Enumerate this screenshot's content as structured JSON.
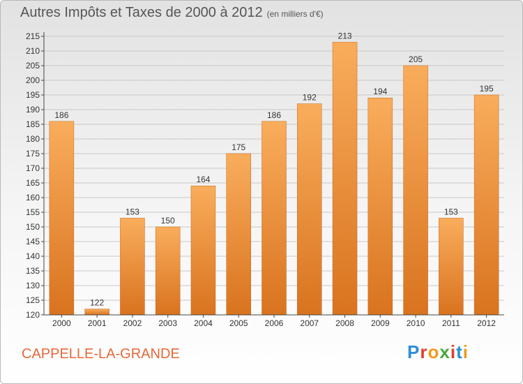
{
  "title": {
    "main": "Autres Impôts et Taxes de 2000 à 2012",
    "unit": "(en milliers d'€)"
  },
  "commune": "CAPPELLE-LA-GRANDE",
  "logo": {
    "letters": [
      "P",
      "r",
      "o",
      "x",
      "i",
      "t",
      "i"
    ],
    "colors": [
      "#2a8fd6",
      "#e33b2e",
      "#f19a1d",
      "#4aa83d",
      "#e33b2e",
      "#2a8fd6",
      "#f19a1d"
    ]
  },
  "colors": {
    "bar_light": "#f9ad5c",
    "bar_dark": "#d9731f",
    "axis": "#444444",
    "grid": "#c8c8c8"
  },
  "chart_data": {
    "type": "bar",
    "categories": [
      "2000",
      "2001",
      "2002",
      "2003",
      "2004",
      "2005",
      "2006",
      "2007",
      "2008",
      "2009",
      "2010",
      "2011",
      "2012"
    ],
    "values": [
      186,
      122,
      153,
      150,
      164,
      175,
      186,
      192,
      213,
      194,
      205,
      153,
      195
    ],
    "value_labels": [
      "186",
      "122",
      "153",
      "150",
      "164",
      "175",
      "186",
      "192",
      "213",
      "194",
      "205",
      "153",
      "195"
    ],
    "ylim": [
      120,
      215
    ],
    "yticks": [
      120,
      125,
      130,
      135,
      140,
      145,
      150,
      155,
      160,
      165,
      170,
      175,
      180,
      185,
      190,
      195,
      200,
      205,
      210,
      215
    ],
    "grid": true
  }
}
